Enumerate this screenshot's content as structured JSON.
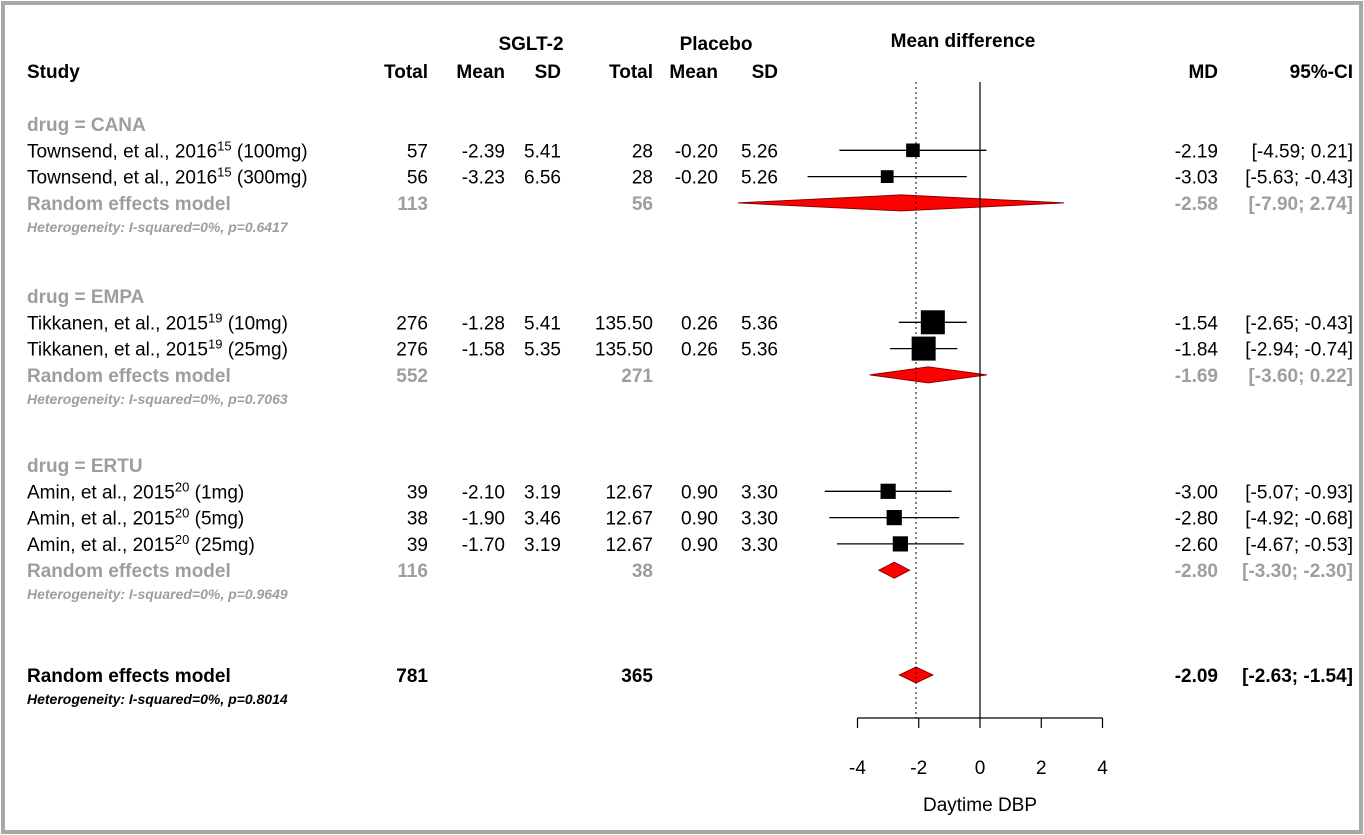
{
  "colors": {
    "frame": "#a8a8a8",
    "text": "#000000",
    "subgroup_text": "#9e9e9e",
    "diamond_fill": "#ff0000",
    "diamond_stroke": "#8b0000",
    "square": "#000000"
  },
  "headers": {
    "study": "Study",
    "exp_group": "SGLT-2",
    "ctrl_group": "Placebo",
    "total": "Total",
    "mean": "Mean",
    "sd": "SD",
    "plot_title": "Mean difference",
    "md": "MD",
    "ci": "95%-CI"
  },
  "chart_data": {
    "type": "forest",
    "xlabel": "Daytime DBP",
    "xlim": [
      -4,
      4
    ],
    "xticks": [
      "-4",
      "-2",
      "0",
      "2",
      "4"
    ],
    "overall_mean_line": -2.09,
    "groups": [
      {
        "label": "drug = CANA",
        "studies": [
          {
            "name": "Townsend, et al., 2016",
            "sup": "15",
            "suffix": " (100mg)",
            "e_total": "57",
            "e_mean": "-2.39",
            "e_sd": "5.41",
            "c_total": "28",
            "c_mean": "-0.20",
            "c_sd": "5.26",
            "md": -2.19,
            "lo": -4.59,
            "hi": 0.21,
            "weight": 0.35,
            "md_text": "-2.19",
            "ci_text": "[-4.59;  0.21]"
          },
          {
            "name": "Townsend, et al., 2016",
            "sup": "15",
            "suffix": " (300mg)",
            "e_total": "56",
            "e_mean": "-3.23",
            "e_sd": "6.56",
            "c_total": "28",
            "c_mean": "-0.20",
            "c_sd": "5.26",
            "md": -3.03,
            "lo": -5.63,
            "hi": -0.43,
            "weight": 0.3,
            "md_text": "-3.03",
            "ci_text": "[-5.63; -0.43]"
          }
        ],
        "pooled": {
          "label": "Random effects model",
          "e_total": "113",
          "c_total": "56",
          "md": -2.58,
          "lo": -7.9,
          "hi": 2.74,
          "md_text": "-2.58",
          "ci_text": "[-7.90;  2.74]"
        },
        "heterogeneity": "Heterogeneity: I-squared=0%, p=0.6417"
      },
      {
        "label": "drug = EMPA",
        "studies": [
          {
            "name": "Tikkanen, et al., 2015",
            "sup": "19",
            "suffix": " (10mg)",
            "e_total": "276",
            "e_mean": "-1.28",
            "e_sd": "5.41",
            "c_total": "135.50",
            "c_mean": "0.26",
            "c_sd": "5.36",
            "md": -1.54,
            "lo": -2.65,
            "hi": -0.43,
            "weight": 1.0,
            "md_text": "-1.54",
            "ci_text": "[-2.65; -0.43]"
          },
          {
            "name": "Tikkanen, et al., 2015",
            "sup": "19",
            "suffix": " (25mg)",
            "e_total": "276",
            "e_mean": "-1.58",
            "e_sd": "5.35",
            "c_total": "135.50",
            "c_mean": "0.26",
            "c_sd": "5.36",
            "md": -1.84,
            "lo": -2.94,
            "hi": -0.74,
            "weight": 1.0,
            "md_text": "-1.84",
            "ci_text": "[-2.94; -0.74]"
          }
        ],
        "pooled": {
          "label": "Random effects model",
          "e_total": "552",
          "c_total": "271",
          "md": -1.69,
          "lo": -3.6,
          "hi": 0.22,
          "md_text": "-1.69",
          "ci_text": "[-3.60;  0.22]"
        },
        "heterogeneity": "Heterogeneity: I-squared=0%, p=0.7063"
      },
      {
        "label": "drug = ERTU",
        "studies": [
          {
            "name": "Amin, et al., 2015",
            "sup": "20",
            "suffix": " (1mg)",
            "e_total": "39",
            "e_mean": "-2.10",
            "e_sd": "3.19",
            "c_total": "12.67",
            "c_mean": "0.90",
            "c_sd": "3.30",
            "md": -3.0,
            "lo": -5.07,
            "hi": -0.93,
            "weight": 0.45,
            "md_text": "-3.00",
            "ci_text": "[-5.07; -0.93]"
          },
          {
            "name": "Amin, et al., 2015",
            "sup": "20",
            "suffix": " (5mg)",
            "e_total": "38",
            "e_mean": "-1.90",
            "e_sd": "3.46",
            "c_total": "12.67",
            "c_mean": "0.90",
            "c_sd": "3.30",
            "md": -2.8,
            "lo": -4.92,
            "hi": -0.68,
            "weight": 0.45,
            "md_text": "-2.80",
            "ci_text": "[-4.92; -0.68]"
          },
          {
            "name": "Amin, et al., 2015",
            "sup": "20",
            "suffix": " (25mg)",
            "e_total": "39",
            "e_mean": "-1.70",
            "e_sd": "3.19",
            "c_total": "12.67",
            "c_mean": "0.90",
            "c_sd": "3.30",
            "md": -2.6,
            "lo": -4.67,
            "hi": -0.53,
            "weight": 0.45,
            "md_text": "-2.60",
            "ci_text": "[-4.67; -0.53]"
          }
        ],
        "pooled": {
          "label": "Random effects model",
          "e_total": "116",
          "c_total": "38",
          "md": -2.8,
          "lo": -3.3,
          "hi": -2.3,
          "md_text": "-2.80",
          "ci_text": "[-3.30; -2.30]"
        },
        "heterogeneity": "Heterogeneity: I-squared=0%, p=0.9649"
      }
    ],
    "overall": {
      "label": "Random effects model",
      "e_total": "781",
      "c_total": "365",
      "md": -2.09,
      "lo": -2.63,
      "hi": -1.54,
      "md_text": "-2.09",
      "ci_text": "[-2.63; -1.54]",
      "heterogeneity": "Heterogeneity: I-squared=0%, p=0.8014"
    }
  }
}
